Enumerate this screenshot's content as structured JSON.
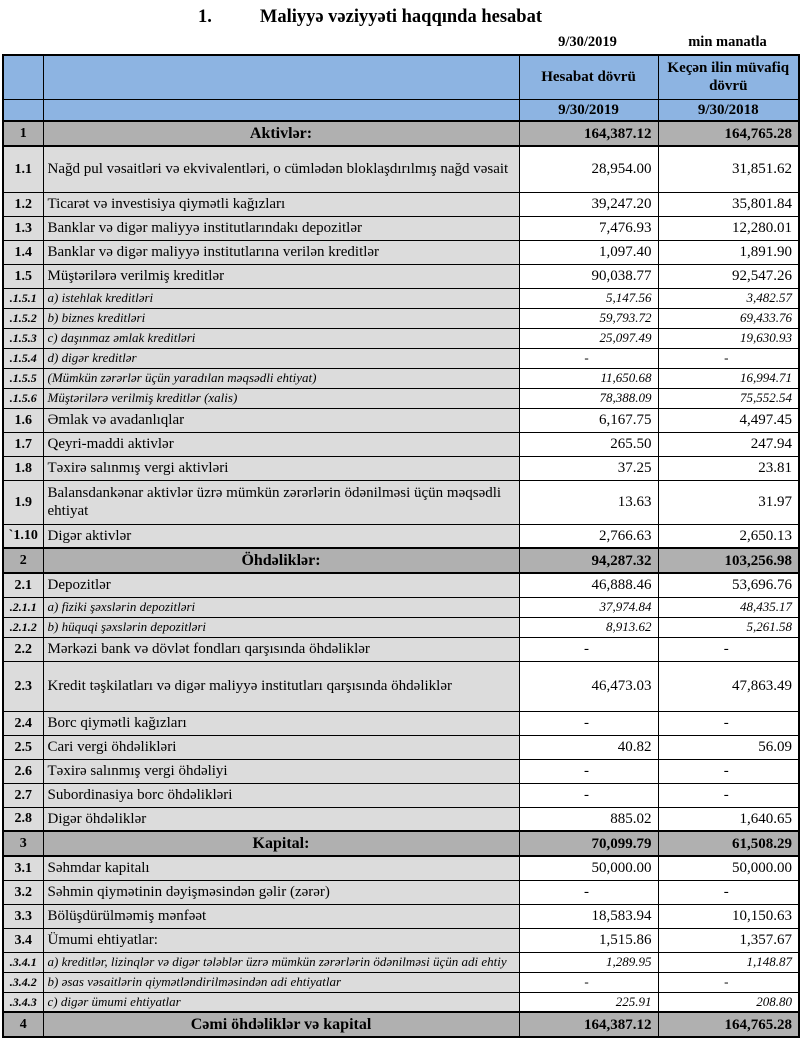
{
  "title": {
    "number": "1.",
    "text": "Maliyyə vəziyyəti haqqında hesabat"
  },
  "meta": {
    "date": "9/30/2019",
    "units": "min manatla"
  },
  "table": {
    "header": {
      "current": "Hesabat dövrü",
      "previous": "Keçən ilin müvafiq dövrü",
      "current_date": "9/30/2019",
      "previous_date": "9/30/2018"
    },
    "rows": [
      {
        "num": "1",
        "label": "Aktivlər:",
        "v1": "164,387.12",
        "v2": "164,765.28",
        "type": "section"
      },
      {
        "num": "1.1",
        "label": "Nağd pul vəsaitləri və  ekvivalentləri, o cümlədən bloklaşdırılmış nağd vəsait",
        "v1": "28,954.00",
        "v2": "31,851.62",
        "type": "data",
        "h": 46
      },
      {
        "num": "1.2",
        "label": "Ticarət və investisiya qiymətli kağızları",
        "v1": "39,247.20",
        "v2": "35,801.84",
        "type": "data"
      },
      {
        "num": "1.3",
        "label": "Banklar və digər maliyyə institutlarındakı depozitlər",
        "v1": "7,476.93",
        "v2": "12,280.01",
        "type": "data"
      },
      {
        "num": "1.4",
        "label": "Banklar və digər maliyyə institutlarına verilən kreditlər",
        "v1": "1,097.40",
        "v2": "1,891.90",
        "type": "data"
      },
      {
        "num": "1.5",
        "label": "Müştərilərə verilmiş kreditlər",
        "v1": "90,038.77",
        "v2": "92,547.26",
        "type": "data"
      },
      {
        "num": ".1.5.1",
        "label": "a) istehlak kreditləri",
        "v1": "5,147.56",
        "v2": "3,482.57",
        "type": "sub"
      },
      {
        "num": ".1.5.2",
        "label": "b) biznes kreditləri",
        "v1": "59,793.72",
        "v2": "69,433.76",
        "type": "sub"
      },
      {
        "num": ".1.5.3",
        "label": "c) daşınmaz əmlak kreditləri",
        "v1": "25,097.49",
        "v2": "19,630.93",
        "type": "sub"
      },
      {
        "num": ".1.5.4",
        "label": "d) digər kreditlər",
        "v1": "-",
        "v2": "-",
        "type": "sub"
      },
      {
        "num": ".1.5.5",
        "label": "(Mümkün zərərlər üçün yaradılan məqsədli ehtiyat)",
        "v1": "11,650.68",
        "v2": "16,994.71",
        "type": "sub"
      },
      {
        "num": ".1.5.6",
        "label": "Müştərilərə verilmiş kreditlər (xalis)",
        "v1": "78,388.09",
        "v2": "75,552.54",
        "type": "sub"
      },
      {
        "num": "1.6",
        "label": "Əmlak və avadanlıqlar",
        "v1": "6,167.75",
        "v2": "4,497.45",
        "type": "data"
      },
      {
        "num": "1.7",
        "label": "Qeyri-maddi aktivlər",
        "v1": "265.50",
        "v2": "247.94",
        "type": "data"
      },
      {
        "num": "1.8",
        "label": "Təxirə salınmış vergi aktivləri",
        "v1": "37.25",
        "v2": "23.81",
        "type": "data"
      },
      {
        "num": "1.9",
        "label": "Balansdankənar aktivlər üzrə mümkün zərərlərin ödənilməsi üçün məqsədli ehtiyat",
        "v1": "13.63",
        "v2": "31.97",
        "type": "data",
        "h": 44
      },
      {
        "num": "`1.10",
        "label": "Digər aktivlər",
        "v1": "2,766.63",
        "v2": "2,650.13",
        "type": "data"
      },
      {
        "num": "2",
        "label": "Öhdəliklər:",
        "v1": "94,287.32",
        "v2": "103,256.98",
        "type": "section"
      },
      {
        "num": "2.1",
        "label": "Depozitlər",
        "v1": "46,888.46",
        "v2": "53,696.76",
        "type": "data"
      },
      {
        "num": ".2.1.1",
        "label": "a) fiziki şəxslərin depozitləri",
        "v1": "37,974.84",
        "v2": "48,435.17",
        "type": "sub"
      },
      {
        "num": ".2.1.2",
        "label": "b) hüquqi şəxslərin depozitləri",
        "v1": "8,913.62",
        "v2": "5,261.58",
        "type": "sub"
      },
      {
        "num": "2.2",
        "label": "Mərkəzi bank və dövlət fondları qarşısında öhdəliklər",
        "v1": "-",
        "v2": "-",
        "type": "data"
      },
      {
        "num": "2.3",
        "label": "Kredit təşkilatları və digər maliyyə institutları qarşısında öhdəliklər",
        "v1": "46,473.03",
        "v2": "47,863.49",
        "type": "data",
        "h": 50
      },
      {
        "num": "2.4",
        "label": "Borc qiymətli kağızları",
        "v1": "-",
        "v2": "-",
        "type": "data"
      },
      {
        "num": "2.5",
        "label": "Cari vergi öhdəlikləri",
        "v1": "40.82",
        "v2": "56.09",
        "type": "data"
      },
      {
        "num": "2.6",
        "label": "Təxirə salınmış vergi öhdəliyi",
        "v1": "-",
        "v2": "-",
        "type": "data"
      },
      {
        "num": "2.7",
        "label": "Subordinasiya borc öhdəlikləri",
        "v1": "-",
        "v2": "-",
        "type": "data"
      },
      {
        "num": "2.8",
        "label": "Digər öhdəliklər",
        "v1": "885.02",
        "v2": "1,640.65",
        "type": "data"
      },
      {
        "num": "3",
        "label": "Kapital:",
        "v1": "70,099.79",
        "v2": "61,508.29",
        "type": "section"
      },
      {
        "num": "3.1",
        "label": "Səhmdar kapitalı",
        "v1": "50,000.00",
        "v2": "50,000.00",
        "type": "data"
      },
      {
        "num": "3.2",
        "label": "Səhmin qiymətinin dəyişməsindən gəlir (zərər)",
        "v1": "-",
        "v2": "-",
        "type": "data"
      },
      {
        "num": "3.3",
        "label": "Bölüşdürülməmiş mənfəət",
        "v1": "18,583.94",
        "v2": "10,150.63",
        "type": "data"
      },
      {
        "num": "3.4",
        "label": "Ümumi ehtiyatlar:",
        "v1": "1,515.86",
        "v2": "1,357.67",
        "type": "data"
      },
      {
        "num": ".3.4.1",
        "label": "a) kreditlər, lizinqlər və digər tələblər üzrə mümkün zərərlərin ödənilməsi üçün adi ehtiy",
        "v1": "1,289.95",
        "v2": "1,148.87",
        "type": "sub"
      },
      {
        "num": ".3.4.2",
        "label": "b) əsas vəsaitlərin qiymətləndirilməsindən adi ehtiyatlar",
        "v1": "-",
        "v2": "-",
        "type": "sub"
      },
      {
        "num": ".3.4.3",
        "label": "c) digər ümumi ehtiyatlar",
        "v1": "225.91",
        "v2": "208.80",
        "type": "sub"
      },
      {
        "num": "4",
        "label": "Cəmi öhdəliklər və kapital",
        "v1": "164,387.12",
        "v2": "164,765.28",
        "type": "section"
      }
    ]
  }
}
